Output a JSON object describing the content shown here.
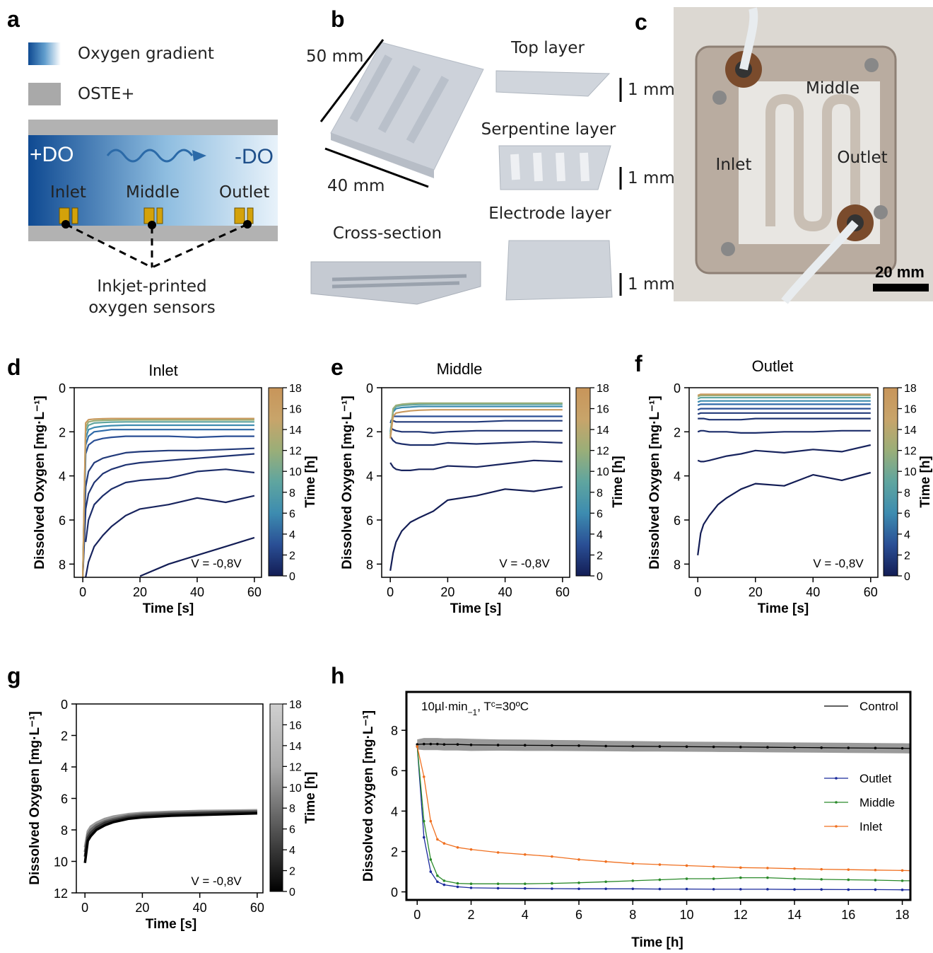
{
  "figure": {
    "a": {
      "letter": "a",
      "legend_gradient": "Oxygen gradient",
      "legend_material": "OSTE+",
      "high": "+DO",
      "low": "-DO",
      "inlet": "Inlet",
      "middle": "Middle",
      "outlet": "Outlet",
      "sensor_note": [
        "Inkjet-printed",
        "oxygen sensors"
      ]
    },
    "b": {
      "letter": "b",
      "length": "50 mm",
      "width": "40 mm",
      "cross_section": "Cross-section",
      "layers": [
        {
          "name": "Top layer",
          "thickness": "1 mm"
        },
        {
          "name": "Serpentine layer",
          "thickness": "1 mm"
        },
        {
          "name": "Electrode layer",
          "thickness": "1 mm"
        }
      ]
    },
    "c": {
      "letter": "c",
      "middle": "Middle",
      "inlet": "Inlet",
      "outlet": "Outlet",
      "scale": "20 mm"
    }
  },
  "chart_data": [
    {
      "panel": "d",
      "type": "line",
      "title": "Inlet",
      "xlabel": "Time [s]",
      "ylabel": "Dissolved Oxygen [mg·L⁻¹]",
      "annotation": "V = -0,8V",
      "x": [
        0,
        1,
        2,
        4,
        7,
        10,
        15,
        20,
        30,
        40,
        50,
        60
      ],
      "series": [
        {
          "color": "#131d55",
          "values": [
            null,
            null,
            null,
            null,
            null,
            null,
            null,
            8.55,
            8.0,
            7.6,
            7.2,
            6.8
          ]
        },
        {
          "color": "#18245e",
          "values": [
            null,
            8.6,
            7.9,
            7.2,
            6.7,
            6.3,
            5.8,
            5.5,
            5.3,
            5.0,
            5.2,
            4.9
          ]
        },
        {
          "color": "#1c2d6a",
          "values": [
            null,
            7.0,
            6.0,
            5.3,
            4.9,
            4.6,
            4.3,
            4.2,
            4.1,
            3.8,
            3.7,
            3.85
          ]
        },
        {
          "color": "#1f3372",
          "values": [
            8.6,
            5.5,
            4.8,
            4.3,
            3.9,
            3.7,
            3.5,
            3.4,
            3.3,
            3.2,
            3.1,
            3.0
          ]
        },
        {
          "color": "#223a7a",
          "values": [
            8.6,
            4.5,
            3.8,
            3.4,
            3.2,
            3.1,
            2.95,
            2.9,
            2.85,
            2.85,
            2.8,
            2.75
          ]
        },
        {
          "color": "#2a4f95",
          "values": [
            8.6,
            3.0,
            2.6,
            2.4,
            2.3,
            2.25,
            2.2,
            2.2,
            2.2,
            2.25,
            2.2,
            2.2
          ]
        },
        {
          "color": "#2f6aa8",
          "values": [
            8.6,
            2.6,
            2.2,
            2.0,
            1.95,
            1.9,
            1.9,
            1.9,
            1.9,
            1.9,
            1.9,
            1.9
          ]
        },
        {
          "color": "#3d8cb0",
          "values": [
            8.6,
            2.3,
            1.9,
            1.8,
            1.75,
            1.72,
            1.7,
            1.7,
            1.7,
            1.7,
            1.7,
            1.7
          ]
        },
        {
          "color": "#5fa59f",
          "values": [
            8.6,
            2.0,
            1.7,
            1.6,
            1.58,
            1.56,
            1.55,
            1.55,
            1.55,
            1.55,
            1.55,
            1.55
          ]
        },
        {
          "color": "#9aae78",
          "values": [
            8.6,
            1.8,
            1.55,
            1.5,
            1.48,
            1.47,
            1.46,
            1.46,
            1.46,
            1.46,
            1.46,
            1.46
          ]
        },
        {
          "color": "#c99a5e",
          "values": [
            8.6,
            1.6,
            1.45,
            1.42,
            1.41,
            1.4,
            1.4,
            1.4,
            1.4,
            1.4,
            1.4,
            1.4
          ]
        }
      ],
      "xlim": [
        -3,
        62.5
      ],
      "ylim": [
        0,
        8.6
      ],
      "y_inverted": true,
      "xticks": [
        0,
        20,
        40,
        60
      ],
      "yticks": [
        0,
        2,
        4,
        6,
        8
      ],
      "colorbar": {
        "label": "Time [h]",
        "lim": [
          0,
          18
        ],
        "ticks": [
          0,
          2,
          4,
          6,
          8,
          10,
          12,
          14,
          16,
          18
        ],
        "colors": [
          "#131d55",
          "#2a4f95",
          "#3d8cb0",
          "#5fa59f",
          "#9aae78",
          "#c8a46a",
          "#c8955a"
        ]
      }
    },
    {
      "panel": "e",
      "type": "line",
      "title": "Middle",
      "xlabel": "Time [s]",
      "ylabel": "Dissolved Oxygen [mg·L⁻¹]",
      "annotation": "V = -0,8V",
      "x": [
        0,
        1,
        2,
        4,
        7,
        10,
        15,
        20,
        30,
        40,
        50,
        60
      ],
      "series": [
        {
          "color": "#131d55",
          "values": [
            8.3,
            7.5,
            7.0,
            6.5,
            6.1,
            5.9,
            5.6,
            5.1,
            4.9,
            4.6,
            4.7,
            4.5
          ]
        },
        {
          "color": "#18245e",
          "values": [
            3.4,
            3.6,
            3.7,
            3.75,
            3.75,
            3.7,
            3.7,
            3.55,
            3.6,
            3.45,
            3.3,
            3.35
          ]
        },
        {
          "color": "#1c2d6a",
          "values": [
            2.2,
            2.4,
            2.5,
            2.55,
            2.6,
            2.6,
            2.6,
            2.5,
            2.55,
            2.5,
            2.45,
            2.5
          ]
        },
        {
          "color": "#1f3372",
          "values": [
            1.8,
            1.9,
            1.95,
            2.0,
            2.0,
            2.0,
            2.05,
            2.0,
            1.95,
            1.95,
            1.95,
            1.95
          ]
        },
        {
          "color": "#223a7a",
          "values": [
            1.5,
            1.5,
            1.55,
            1.55,
            1.55,
            1.55,
            1.55,
            1.55,
            1.55,
            1.5,
            1.5,
            1.5
          ]
        },
        {
          "color": "#2a4f95",
          "values": [
            1.6,
            1.3,
            1.3,
            1.3,
            1.3,
            1.3,
            1.3,
            1.3,
            1.3,
            1.3,
            1.3,
            1.3
          ]
        },
        {
          "color": "#3d8cb0",
          "values": [
            2.0,
            1.1,
            0.95,
            0.9,
            0.88,
            0.85,
            0.85,
            0.85,
            0.85,
            0.85,
            0.85,
            0.85
          ]
        },
        {
          "color": "#5fa59f",
          "values": [
            2.1,
            1.0,
            0.85,
            0.8,
            0.78,
            0.76,
            0.75,
            0.75,
            0.75,
            0.75,
            0.75,
            0.75
          ]
        },
        {
          "color": "#9aae78",
          "values": [
            2.2,
            0.95,
            0.8,
            0.75,
            0.72,
            0.7,
            0.7,
            0.7,
            0.7,
            0.7,
            0.7,
            0.7
          ]
        },
        {
          "color": "#c99a5e",
          "values": [
            2.3,
            1.3,
            1.15,
            1.1,
            1.05,
            1.02,
            1.0,
            1.0,
            1.0,
            1.0,
            1.0,
            1.0
          ]
        }
      ],
      "xlim": [
        -3,
        62.5
      ],
      "ylim": [
        0,
        8.6
      ],
      "y_inverted": true,
      "xticks": [
        0,
        20,
        40,
        60
      ],
      "yticks": [
        0,
        2,
        4,
        6,
        8
      ],
      "colorbar": {
        "label": "Time [h]",
        "lim": [
          0,
          18
        ],
        "ticks": [
          0,
          2,
          4,
          6,
          8,
          10,
          12,
          14,
          16,
          18
        ],
        "colors": [
          "#131d55",
          "#2a4f95",
          "#3d8cb0",
          "#5fa59f",
          "#9aae78",
          "#c8a46a",
          "#c8955a"
        ]
      }
    },
    {
      "panel": "f",
      "type": "line",
      "title": "Outlet",
      "xlabel": "Time [s]",
      "ylabel": "Dissolved Oxygen [mg·L⁻¹]",
      "annotation": "V = -0,8V",
      "x": [
        0,
        1,
        2,
        4,
        7,
        10,
        15,
        20,
        30,
        40,
        50,
        60
      ],
      "series": [
        {
          "color": "#131d55",
          "values": [
            7.6,
            6.6,
            6.2,
            5.8,
            5.3,
            5.0,
            4.6,
            4.35,
            4.45,
            3.95,
            4.2,
            3.85
          ]
        },
        {
          "color": "#18245e",
          "values": [
            3.3,
            3.35,
            3.35,
            3.3,
            3.2,
            3.1,
            3.0,
            2.85,
            2.95,
            2.8,
            2.9,
            2.6
          ]
        },
        {
          "color": "#1c2d6a",
          "values": [
            2.0,
            1.95,
            1.95,
            2.0,
            2.0,
            2.0,
            2.05,
            2.05,
            2.0,
            2.0,
            1.95,
            1.95
          ]
        },
        {
          "color": "#1f3372",
          "values": [
            1.4,
            1.4,
            1.4,
            1.45,
            1.45,
            1.45,
            1.45,
            1.4,
            1.4,
            1.4,
            1.4,
            1.4
          ]
        },
        {
          "color": "#223a7a",
          "values": [
            1.2,
            1.15,
            1.15,
            1.15,
            1.15,
            1.15,
            1.15,
            1.15,
            1.15,
            1.15,
            1.15,
            1.15
          ]
        },
        {
          "color": "#2a4f95",
          "values": [
            1.0,
            0.95,
            0.95,
            0.95,
            0.95,
            0.95,
            0.95,
            0.95,
            0.95,
            0.95,
            0.95,
            0.95
          ]
        },
        {
          "color": "#2f6aa8",
          "values": [
            0.8,
            0.75,
            0.75,
            0.75,
            0.75,
            0.75,
            0.75,
            0.75,
            0.75,
            0.75,
            0.75,
            0.75
          ]
        },
        {
          "color": "#3d8cb0",
          "values": [
            0.65,
            0.6,
            0.6,
            0.6,
            0.6,
            0.6,
            0.6,
            0.6,
            0.6,
            0.6,
            0.6,
            0.6
          ]
        },
        {
          "color": "#5fa59f",
          "values": [
            0.5,
            0.45,
            0.45,
            0.45,
            0.45,
            0.45,
            0.45,
            0.45,
            0.45,
            0.45,
            0.45,
            0.45
          ]
        },
        {
          "color": "#9aae78",
          "values": [
            0.4,
            0.35,
            0.35,
            0.35,
            0.35,
            0.35,
            0.35,
            0.35,
            0.35,
            0.35,
            0.35,
            0.35
          ]
        },
        {
          "color": "#c99a5e",
          "values": [
            0.35,
            0.3,
            0.3,
            0.3,
            0.3,
            0.3,
            0.3,
            0.3,
            0.3,
            0.3,
            0.3,
            0.3
          ]
        }
      ],
      "xlim": [
        -3,
        62.5
      ],
      "ylim": [
        0,
        8.6
      ],
      "y_inverted": true,
      "xticks": [
        0,
        20,
        40,
        60
      ],
      "yticks": [
        0,
        2,
        4,
        6,
        8
      ],
      "colorbar": {
        "label": "Time [h]",
        "lim": [
          0,
          18
        ],
        "ticks": [
          0,
          2,
          4,
          6,
          8,
          10,
          12,
          14,
          16,
          18
        ],
        "colors": [
          "#131d55",
          "#2a4f95",
          "#3d8cb0",
          "#5fa59f",
          "#9aae78",
          "#c8a46a",
          "#c8955a"
        ]
      }
    },
    {
      "panel": "g",
      "type": "line",
      "xlabel": "Time [s]",
      "ylabel": "Dissolved Oxygen [mg·L⁻¹]",
      "annotation": "V = -0,8V",
      "x": [
        0,
        1,
        2,
        4,
        7,
        10,
        15,
        20,
        30,
        40,
        50,
        60
      ],
      "series": [
        {
          "color": "#999999",
          "values": [
            9.1,
            8.1,
            7.8,
            7.55,
            7.3,
            7.15,
            7.0,
            6.92,
            6.85,
            6.8,
            6.78,
            6.75
          ]
        },
        {
          "color": "#666666",
          "values": [
            9.4,
            8.3,
            8.0,
            7.7,
            7.45,
            7.3,
            7.1,
            7.0,
            6.92,
            6.88,
            6.85,
            6.82
          ]
        },
        {
          "color": "#333333",
          "values": [
            9.7,
            8.5,
            8.2,
            7.85,
            7.55,
            7.4,
            7.2,
            7.1,
            7.0,
            6.95,
            6.9,
            6.88
          ]
        },
        {
          "color": "#000000",
          "values": [
            10.1,
            8.7,
            8.4,
            8.0,
            7.7,
            7.5,
            7.3,
            7.2,
            7.1,
            7.05,
            7.0,
            6.95
          ]
        }
      ],
      "xlim": [
        -3,
        62
      ],
      "ylim": [
        0,
        12
      ],
      "y_inverted": true,
      "xticks": [
        0,
        20,
        40,
        60
      ],
      "yticks": [
        0,
        2,
        4,
        6,
        8,
        10,
        12
      ],
      "colorbar": {
        "label": "Time [h]",
        "lim": [
          0,
          18
        ],
        "ticks": [
          0,
          2,
          4,
          6,
          8,
          10,
          12,
          14,
          16,
          18
        ],
        "colors": [
          "#000000",
          "#555555",
          "#aaaaaa",
          "#d0d0d0"
        ]
      }
    },
    {
      "panel": "h",
      "type": "line",
      "xlabel": "Time [h]",
      "ylabel": "Dissolved oxygen [mg·L⁻¹]",
      "annotation": [
        "10µl·min",
        "−1",
        ", T",
        "c",
        "=30ºC"
      ],
      "x": [
        0,
        0.25,
        0.5,
        0.75,
        1,
        1.5,
        2,
        3,
        4,
        5,
        6,
        7,
        8,
        9,
        10,
        11,
        12,
        13,
        14,
        15,
        16,
        17,
        18,
        18.3
      ],
      "series": [
        {
          "name": "Control",
          "color": "#000000",
          "values": [
            7.3,
            7.32,
            7.32,
            7.32,
            7.3,
            7.3,
            7.28,
            7.27,
            7.26,
            7.25,
            7.24,
            7.22,
            7.21,
            7.2,
            7.19,
            7.18,
            7.17,
            7.16,
            7.15,
            7.14,
            7.13,
            7.12,
            7.11,
            7.1
          ],
          "error": [
            0.25,
            0.3,
            0.3,
            0.3,
            0.3,
            0.3,
            0.3,
            0.28,
            0.28,
            0.27,
            0.27,
            0.26,
            0.26,
            0.25,
            0.25,
            0.25,
            0.25,
            0.25,
            0.25,
            0.25,
            0.25,
            0.25,
            0.25,
            0.25
          ]
        },
        {
          "name": "Outlet",
          "color": "#1a2a9c",
          "values": [
            7.2,
            2.7,
            1.0,
            0.5,
            0.35,
            0.25,
            0.2,
            0.18,
            0.17,
            0.16,
            0.15,
            0.15,
            0.15,
            0.14,
            0.14,
            0.13,
            0.13,
            0.13,
            0.12,
            0.12,
            0.11,
            0.11,
            0.1,
            0.1
          ]
        },
        {
          "name": "Middle",
          "color": "#2a8a2a",
          "values": [
            7.2,
            3.5,
            1.6,
            0.8,
            0.55,
            0.42,
            0.4,
            0.4,
            0.4,
            0.42,
            0.45,
            0.5,
            0.55,
            0.6,
            0.65,
            0.65,
            0.7,
            0.7,
            0.65,
            0.62,
            0.6,
            0.58,
            0.55,
            0.55
          ]
        },
        {
          "name": "Inlet",
          "color": "#f07020",
          "values": [
            7.2,
            5.7,
            3.5,
            2.6,
            2.4,
            2.2,
            2.1,
            1.95,
            1.85,
            1.75,
            1.6,
            1.5,
            1.4,
            1.35,
            1.3,
            1.25,
            1.2,
            1.18,
            1.15,
            1.12,
            1.1,
            1.08,
            1.06,
            1.05
          ]
        }
      ],
      "xlim": [
        -0.4,
        18.3
      ],
      "ylim": [
        -0.4,
        9.9
      ],
      "xticks": [
        0,
        2,
        4,
        6,
        8,
        10,
        12,
        14,
        16,
        18
      ],
      "yticks": [
        0,
        2,
        4,
        6,
        8
      ],
      "legend": "upper right"
    }
  ]
}
